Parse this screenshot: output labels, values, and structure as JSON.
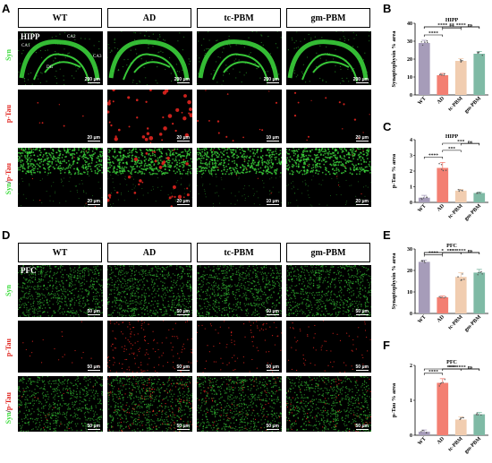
{
  "panel_letters": [
    "A",
    "B",
    "C",
    "D",
    "E",
    "F"
  ],
  "groups": [
    "WT",
    "AD",
    "tc-PBM",
    "gm-PBM"
  ],
  "colors": {
    "wt": "#a69cb9",
    "ad": "#f37f72",
    "tc": "#f1cdb0",
    "gm": "#7fbaa5",
    "syn": "#3ddc3d",
    "ptau": "#e0251f"
  },
  "sectionA": {
    "region": "HIPP",
    "anatomy": {
      "ca1": "CA1",
      "ca2": "CA2",
      "ca3": "CA3",
      "dg": "DG"
    },
    "rows": [
      {
        "label": "Syn",
        "scales": [
          "200 μm",
          "200 μm",
          "200 μm",
          "200 μm"
        ]
      },
      {
        "label": "p-Tau",
        "scales": [
          "20 μm",
          "20 μm",
          "10 μm",
          "20 μm"
        ]
      },
      {
        "label_a": "Syn",
        "label_sep": "/",
        "label_b": "p-Tau",
        "scales": [
          "20 μm",
          "20 μm",
          "10 μm",
          "20 μm"
        ]
      }
    ]
  },
  "sectionD": {
    "region": "PFC",
    "rows": [
      {
        "label": "Syn",
        "scales": [
          "50 μm",
          "50 μm",
          "50 μm",
          "50 μm"
        ]
      },
      {
        "label": "p-Tau",
        "scales": [
          "50 μm",
          "50 μm",
          "50 μm",
          "50 μm"
        ]
      },
      {
        "label_a": "Syn",
        "label_sep": "/",
        "label_b": "p-Tau",
        "scales": [
          "50 μm",
          "50 μm",
          "50 μm",
          "50 μm"
        ]
      }
    ]
  },
  "chart_data": [
    {
      "panel": "B",
      "type": "bar",
      "title": "HIPP",
      "ylabel": "Synaptophysin % area",
      "categories": [
        "WT",
        "AD",
        "tc-PBM",
        "gm-PBM"
      ],
      "values": [
        29,
        11,
        19,
        23
      ],
      "errors": [
        1.5,
        1,
        1.2,
        1.2
      ],
      "ylim": [
        0,
        40
      ],
      "yticks": [
        0,
        10,
        20,
        30,
        40
      ],
      "significance": [
        {
          "a": 0,
          "b": 1,
          "label": "****"
        },
        {
          "a": 1,
          "b": 2,
          "label": "**"
        },
        {
          "a": 2,
          "b": 3,
          "label": "ns"
        },
        {
          "a": 0,
          "b": 2,
          "label": "****"
        },
        {
          "a": 1,
          "b": 3,
          "label": "****"
        },
        {
          "a": 0,
          "b": 3,
          "label": "**"
        }
      ]
    },
    {
      "panel": "C",
      "type": "bar",
      "title": "HIPP",
      "ylabel": "p-Tau % area",
      "categories": [
        "WT",
        "AD",
        "tc-PBM",
        "gm-PBM"
      ],
      "values": [
        0.3,
        2.2,
        0.75,
        0.6
      ],
      "errors": [
        0.15,
        0.35,
        0.08,
        0.05
      ],
      "ylim": [
        0,
        4
      ],
      "yticks": [
        0,
        1,
        2,
        3,
        4
      ],
      "significance": [
        {
          "a": 0,
          "b": 1,
          "label": "****"
        },
        {
          "a": 1,
          "b": 2,
          "label": "***"
        },
        {
          "a": 2,
          "b": 3,
          "label": "ns"
        },
        {
          "a": 1,
          "b": 3,
          "label": "***"
        }
      ]
    },
    {
      "panel": "E",
      "type": "bar",
      "title": "PFC",
      "ylabel": "Synaptophysin % area",
      "categories": [
        "WT",
        "AD",
        "tc-PBM",
        "gm-PBM"
      ],
      "values": [
        24,
        7.5,
        17,
        19
      ],
      "errors": [
        0.8,
        0.6,
        2,
        1.5
      ],
      "ylim": [
        0,
        30
      ],
      "yticks": [
        0,
        10,
        20,
        30
      ],
      "significance": [
        {
          "a": 0,
          "b": 1,
          "label": "****"
        },
        {
          "a": 1,
          "b": 2,
          "label": "****"
        },
        {
          "a": 2,
          "b": 3,
          "label": "ns"
        },
        {
          "a": 0,
          "b": 2,
          "label": "*"
        },
        {
          "a": 1,
          "b": 3,
          "label": "****"
        },
        {
          "a": 0,
          "b": 3,
          "label": "**"
        }
      ]
    },
    {
      "panel": "F",
      "type": "bar",
      "title": "PFC",
      "ylabel": "p-Tau % area",
      "categories": [
        "WT",
        "AD",
        "tc-PBM",
        "gm-PBM"
      ],
      "values": [
        0.1,
        1.5,
        0.45,
        0.6
      ],
      "errors": [
        0.05,
        0.12,
        0.08,
        0.05
      ],
      "ylim": [
        0,
        2
      ],
      "yticks": [
        0,
        1,
        2
      ],
      "significance": [
        {
          "a": 0,
          "b": 1,
          "label": "****"
        },
        {
          "a": 1,
          "b": 2,
          "label": "****"
        },
        {
          "a": 2,
          "b": 3,
          "label": "ns"
        },
        {
          "a": 1,
          "b": 3,
          "label": "****"
        },
        {
          "a": 0,
          "b": 3,
          "label": "***"
        }
      ]
    }
  ]
}
